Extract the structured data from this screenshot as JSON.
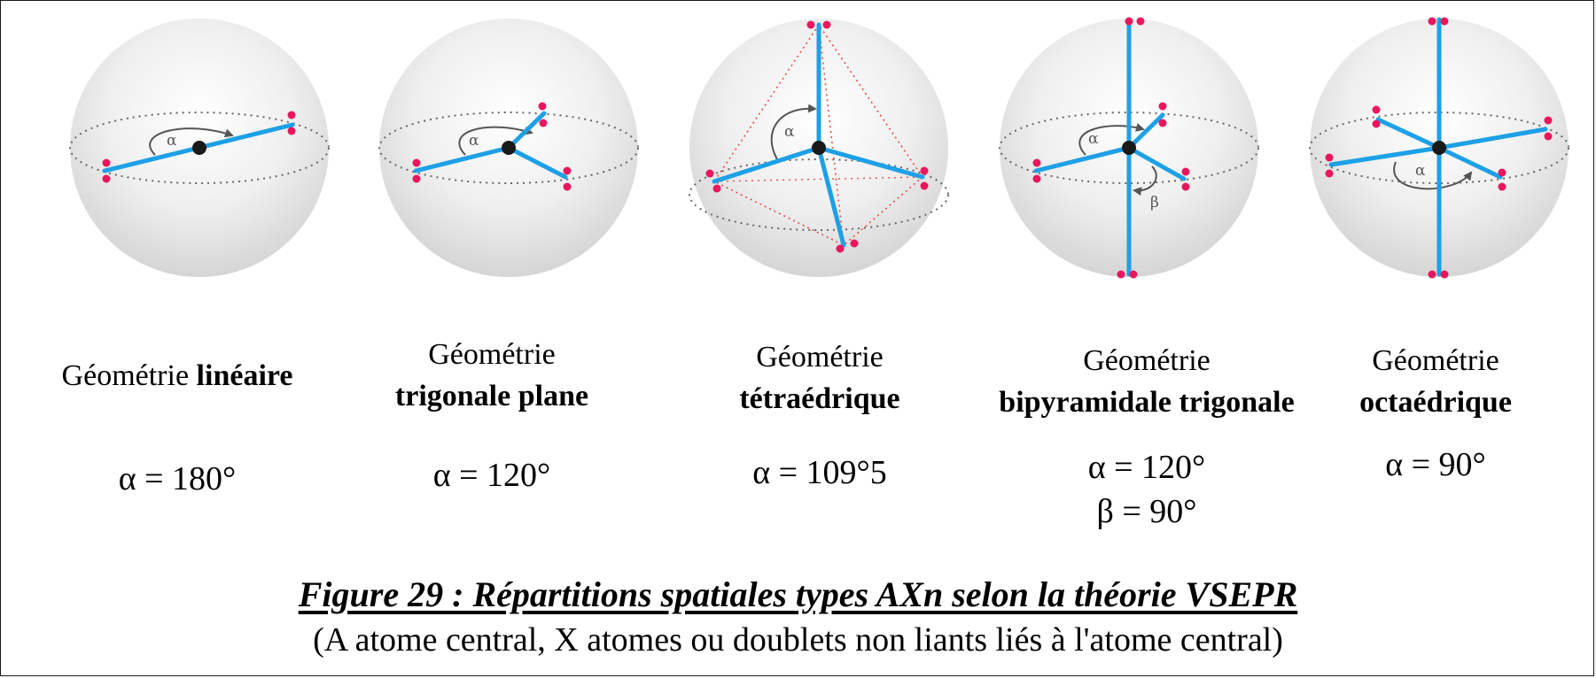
{
  "geometries": [
    {
      "prefix": "Géométrie ",
      "name": "linéaire",
      "angles": [
        "α = 180°"
      ]
    },
    {
      "prefix": "Géométrie",
      "name": "trigonale plane",
      "angles": [
        "α = 120°"
      ]
    },
    {
      "prefix": "Géométrie",
      "name": "tétraédrique",
      "angles": [
        "α = 109°5"
      ]
    },
    {
      "prefix": "Géométrie",
      "name": "bipyramidale trigonale",
      "angles": [
        "α = 120°",
        "β = 90°"
      ]
    },
    {
      "prefix": "Géométrie",
      "name": "octaédrique",
      "angles": [
        "α = 90°"
      ]
    }
  ],
  "diagram_labels": {
    "alpha": "α",
    "beta": "β"
  },
  "caption": {
    "title": "Figure 29 : Répartitions spatiales types AXn selon la théorie VSEPR",
    "subtitle": "(A atome central, X atomes ou doublets non liants liés à l'atome central)"
  },
  "colors": {
    "bond": "#1ea0e6",
    "lone_pair": "#e8175d",
    "atom": "#1a1a1a",
    "sphere_light": "#ffffff",
    "sphere_dark": "#d4d4d4",
    "tetra_edge": "#e84a4a"
  }
}
